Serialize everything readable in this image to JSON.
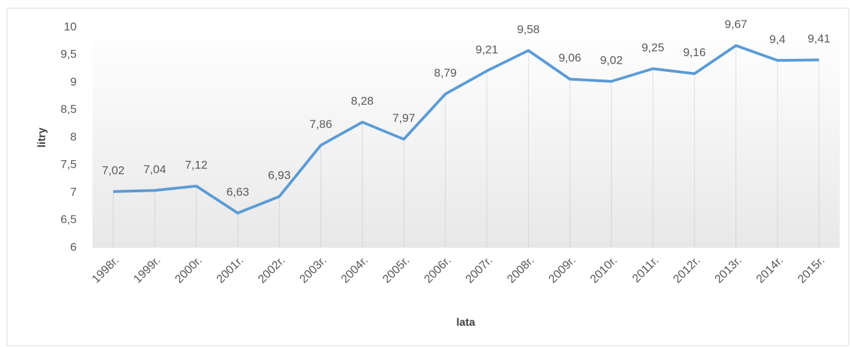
{
  "chart_data": {
    "type": "line",
    "x_label": "lata",
    "y_label": "litry",
    "categories": [
      "1998r.",
      "1999r.",
      "2000r.",
      "2001r.",
      "2002r.",
      "2003r.",
      "2004r.",
      "2005r.",
      "2006r.",
      "2007r.",
      "2008r.",
      "2009r.",
      "2010r.",
      "2011r.",
      "2012r.",
      "2013r.",
      "2014r.",
      "2015r."
    ],
    "series": [
      {
        "color": "#5b9bd5",
        "values": [
          7.02,
          7.04,
          7.12,
          6.63,
          6.93,
          7.86,
          8.28,
          7.97,
          8.79,
          9.21,
          9.58,
          9.06,
          9.02,
          9.25,
          9.16,
          9.67,
          9.4,
          9.41
        ],
        "value_labels": [
          "7,02",
          "7,04",
          "7,12",
          "6,63",
          "6,93",
          "7,86",
          "8,28",
          "7,97",
          "8,79",
          "9,21",
          "9,58",
          "9,06",
          "9,02",
          "9,25",
          "9,16",
          "9,67",
          "9,4",
          "9,41"
        ]
      }
    ],
    "ylim": [
      6,
      10
    ],
    "yticks": [
      6,
      {
        "value": 6.5,
        "label": "6,5"
      },
      7,
      {
        "value": 7.5,
        "label": "7,5"
      },
      8,
      {
        "value": 8.5,
        "label": "8,5"
      },
      9,
      {
        "value": 9.5,
        "label": "9,5"
      },
      10
    ],
    "drop_lines": true
  }
}
